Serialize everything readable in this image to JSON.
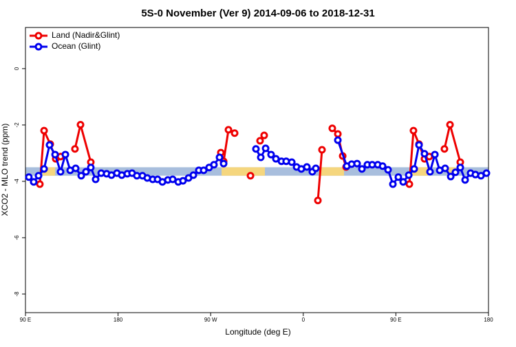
{
  "chart_data": {
    "type": "line",
    "title": "5S-0 November (Ver 9)   2014-09-06 to 2018-12-31",
    "x_label": "Longitude (deg E)",
    "y_label": "XCO2 - MLO trend (ppm)",
    "xlim": [
      90,
      540
    ],
    "ylim": [
      -8.66,
      1.46
    ],
    "xticks": [
      {
        "value": 90,
        "label": "90 E"
      },
      {
        "value": 180,
        "label": "180"
      },
      {
        "value": 270,
        "label": "90 W"
      },
      {
        "value": 360,
        "label": "0"
      },
      {
        "value": 450,
        "label": "90 E"
      },
      {
        "value": 540,
        "label": "180"
      }
    ],
    "yticks": [
      0,
      -2,
      -4,
      -6,
      -8
    ],
    "legend": "top-left",
    "band": {
      "color": "#a8bedd",
      "range": [
        -3.8,
        -3.5
      ]
    },
    "highlights": {
      "color": "#f5d67e",
      "ranges": [
        [
          106.7,
          118.8
        ],
        [
          280.6,
          322.7
        ],
        [
          376.2,
          399.6
        ],
        [
          465,
          481
        ],
        [
          500,
          510
        ]
      ]
    },
    "series": [
      {
        "name": "Land (Nadir&Glint)",
        "color": "#ee0000",
        "x": [
          104.0,
          108.1,
          114.1,
          119.4,
          124.1,
          null,
          138.1,
          143.5,
          153.5,
          null,
          279.9,
          282.6,
          287.3,
          293.3,
          null,
          308.7,
          null,
          318.0,
          322.0,
          null,
          374.2,
          378.2,
          null,
          388.2,
          393.6,
          398.3,
          401.6,
          null,
          463.1,
          467.1,
          472.5,
          477.8,
          482.5,
          null,
          497.2,
          502.6,
          512.6
        ],
        "values": [
          -4.1,
          -2.2,
          -2.68,
          -3.2,
          -3.12,
          null,
          -2.85,
          -1.99,
          -3.32,
          null,
          -2.98,
          -3.29,
          -2.17,
          -2.29,
          null,
          -3.8,
          null,
          -2.56,
          -2.37,
          null,
          -4.68,
          -2.88,
          null,
          -2.12,
          -2.32,
          -3.1,
          -3.49,
          null,
          -4.1,
          -2.2,
          -2.68,
          -3.2,
          -3.12,
          null,
          -2.85,
          -1.99,
          -3.32
        ]
      },
      {
        "name": "Ocean (Glint)",
        "color": "#0000ee",
        "x": [
          93.3,
          98.0,
          102.7,
          108.1,
          113.4,
          118.8,
          124.1,
          128.8,
          133.5,
          138.8,
          144.2,
          148.8,
          153.5,
          158.2,
          163.6,
          168.9,
          173.6,
          178.9,
          183.6,
          189.0,
          193.6,
          198.3,
          203.7,
          208.4,
          213.7,
          218.4,
          223.1,
          228.4,
          233.1,
          238.5,
          243.1,
          248.5,
          253.2,
          258.5,
          263.2,
          268.5,
          273.2,
          278.6,
          282.6,
          null,
          314.0,
          318.7,
          323.4,
          328.7,
          333.4,
          338.8,
          343.4,
          348.8,
          353.5,
          358.1,
          363.5,
          368.8,
          372.2,
          null,
          393.6,
          402.3,
          407.0,
          412.3,
          417.0,
          422.3,
          427.0,
          432.4,
          437.1,
          442.4,
          447.1,
          452.4,
          457.1,
          462.5,
          467.8,
          472.5,
          477.8,
          483.2,
          487.9,
          492.6,
          497.9,
          503.3,
          507.9,
          512.6,
          517.3,
          522.6,
          527.3,
          532.7,
          538.0
        ],
        "values": [
          -3.85,
          -4.02,
          -3.8,
          -3.56,
          -2.71,
          -3.05,
          -3.66,
          -3.05,
          -3.61,
          -3.54,
          -3.8,
          -3.66,
          -3.51,
          -3.93,
          -3.71,
          -3.73,
          -3.78,
          -3.71,
          -3.78,
          -3.73,
          -3.71,
          -3.8,
          -3.8,
          -3.88,
          -3.93,
          -3.93,
          -4.02,
          -3.95,
          -3.93,
          -4.02,
          -3.98,
          -3.88,
          -3.78,
          -3.61,
          -3.61,
          -3.51,
          -3.41,
          -3.15,
          -3.37,
          null,
          -2.85,
          -3.15,
          -2.83,
          -3.05,
          -3.2,
          -3.29,
          -3.29,
          -3.32,
          -3.49,
          -3.56,
          -3.49,
          -3.66,
          -3.54,
          null,
          -2.54,
          -3.46,
          -3.39,
          -3.37,
          -3.56,
          -3.41,
          -3.41,
          -3.41,
          -3.46,
          -3.59,
          -4.1,
          -3.85,
          -4.02,
          -3.78,
          -3.56,
          -2.71,
          -3.02,
          -3.66,
          -3.05,
          -3.61,
          -3.54,
          -3.83,
          -3.68,
          -3.51,
          -3.95,
          -3.71,
          -3.76,
          -3.8,
          -3.71
        ]
      }
    ]
  }
}
